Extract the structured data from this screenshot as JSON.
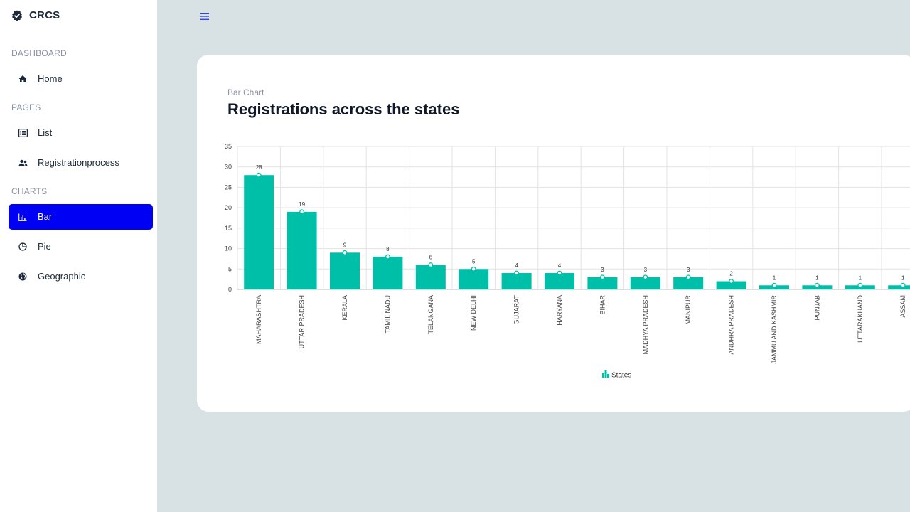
{
  "brand": {
    "name": "CRCS",
    "icon": "check-badge-icon"
  },
  "sidebar": {
    "sections": [
      {
        "label": "DASHBOARD"
      },
      {
        "label": "PAGES"
      },
      {
        "label": "CHARTS"
      }
    ],
    "items": [
      {
        "label": "Home",
        "icon": "home-icon"
      },
      {
        "label": "List",
        "icon": "list-icon"
      },
      {
        "label": "Registrationprocess",
        "icon": "users-icon"
      },
      {
        "label": "Bar",
        "icon": "bar-chart-icon",
        "active": true
      },
      {
        "label": "Pie",
        "icon": "pie-chart-icon"
      },
      {
        "label": "Geographic",
        "icon": "globe-icon"
      }
    ],
    "active_color": "#0000f5"
  },
  "card": {
    "subtitle": "Bar Chart",
    "title": "Registrations across the states"
  },
  "chart_data": {
    "type": "bar",
    "categories": [
      "MAHARASHTRA",
      "UTTAR PRADESH",
      "KERALA",
      "TAMIL NADU",
      "TELANGANA",
      "NEW DELHI",
      "GUJARAT",
      "HARYANA",
      "BIHAR",
      "MADHYA PRADESH",
      "MANIPUR",
      "ANDHRA PRADESH",
      "JAMMU AND KASHMIR",
      "PUNJAB",
      "UTTARAKHAND",
      "ASSAM"
    ],
    "series": [
      {
        "name": "States",
        "values": [
          28,
          19,
          9,
          8,
          6,
          5,
          4,
          4,
          3,
          3,
          3,
          2,
          1,
          1,
          1,
          1
        ]
      }
    ],
    "ylim": [
      0,
      35
    ],
    "yticks": [
      0,
      5,
      10,
      15,
      20,
      25,
      30,
      35
    ],
    "grid": true,
    "legend": "bottom-center",
    "color": "#00bfa9"
  }
}
